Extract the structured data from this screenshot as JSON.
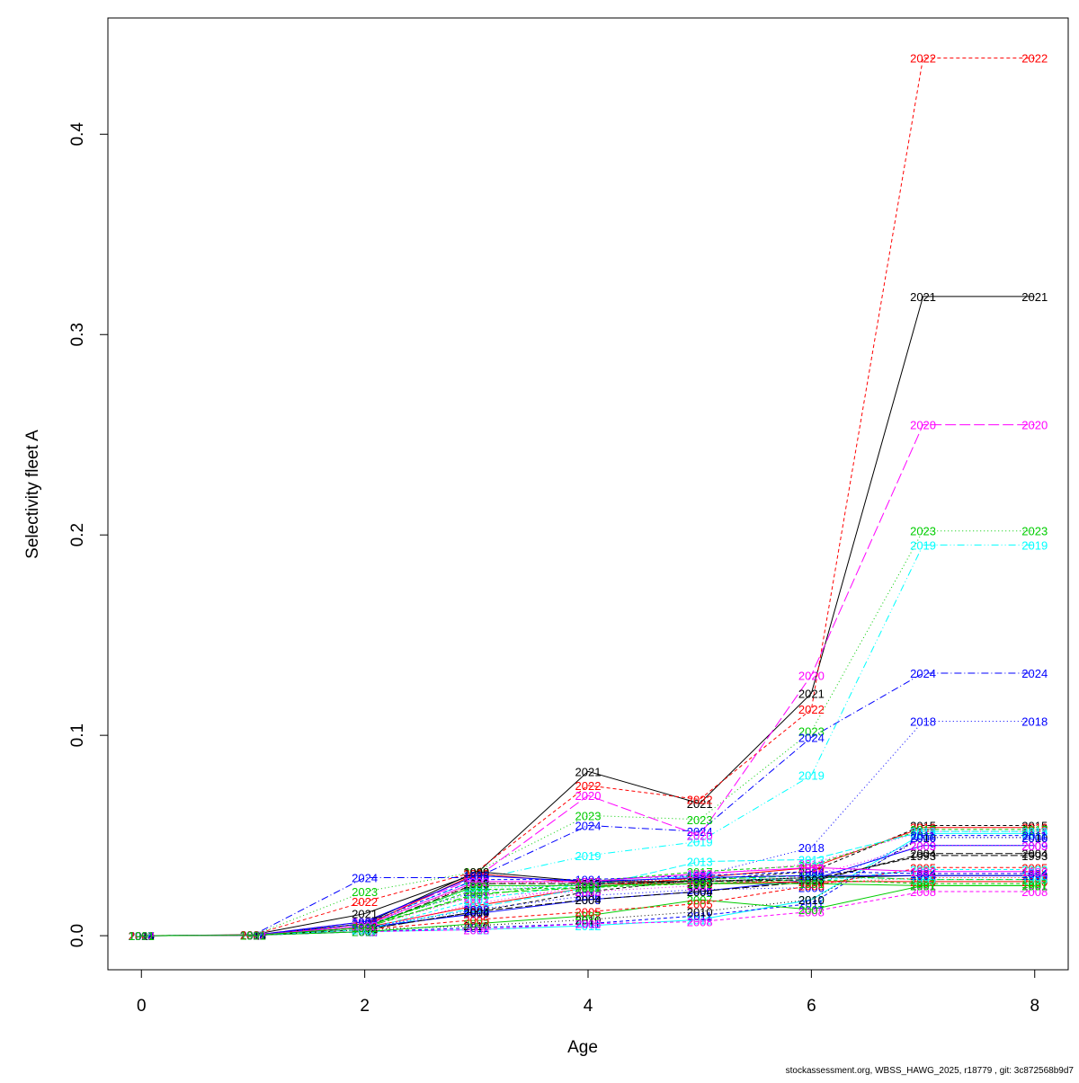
{
  "chart_data": {
    "type": "line",
    "title": "",
    "xlabel": "Age",
    "ylabel": "Selectivity fleet A",
    "xlim": [
      -0.3,
      8.3
    ],
    "ylim": [
      -0.017,
      0.458
    ],
    "xticks": [
      0,
      2,
      4,
      6,
      8
    ],
    "yticks": [
      0.0,
      0.1,
      0.2,
      0.3,
      0.4
    ],
    "ytick_labels": [
      "0.0",
      "0.1",
      "0.2",
      "0.3",
      "0.4"
    ],
    "grid": false,
    "legend": "none",
    "x": [
      0,
      1,
      2,
      3,
      4,
      5,
      6,
      7,
      8
    ],
    "series": [
      {
        "name": "2021",
        "color": "#000000",
        "dash": "",
        "values": [
          0,
          0.0005,
          0.011,
          0.031,
          0.082,
          0.066,
          0.121,
          0.319,
          0.319
        ]
      },
      {
        "name": "2022",
        "color": "#FF0000",
        "dash": "4,3",
        "values": [
          0,
          0.0004,
          0.017,
          0.032,
          0.075,
          0.068,
          0.113,
          0.438,
          0.438
        ]
      },
      {
        "name": "2023",
        "color": "#00CD00",
        "dash": "1,3",
        "values": [
          0,
          0.0003,
          0.022,
          0.032,
          0.06,
          0.058,
          0.102,
          0.202,
          0.202
        ]
      },
      {
        "name": "2024",
        "color": "#0000FF",
        "dash": "8,3,1,3",
        "values": [
          0,
          0.0003,
          0.029,
          0.029,
          0.055,
          0.052,
          0.099,
          0.131,
          0.131
        ]
      },
      {
        "name": "2019",
        "color": "#00FFFF",
        "dash": "8,3,1,3,1,3",
        "values": [
          0,
          0.0003,
          0.006,
          0.028,
          0.04,
          0.047,
          0.08,
          0.195,
          0.195
        ]
      },
      {
        "name": "2020",
        "color": "#FF00FF",
        "dash": "12,4",
        "values": [
          0,
          0.0003,
          0.007,
          0.029,
          0.07,
          0.05,
          0.13,
          0.255,
          0.255
        ]
      },
      {
        "name": "2018",
        "color": "#0000FF",
        "dash": "1,3",
        "values": [
          0,
          0.0003,
          0.006,
          0.022,
          0.026,
          0.03,
          0.044,
          0.107,
          0.107
        ]
      },
      {
        "name": "2015",
        "color": "#000000",
        "dash": "4,3",
        "values": [
          0,
          0.0003,
          0.003,
          0.012,
          0.022,
          0.028,
          0.032,
          0.055,
          0.055
        ]
      },
      {
        "name": "2016",
        "color": "#FF0000",
        "dash": "",
        "values": [
          0,
          0.0003,
          0.004,
          0.015,
          0.024,
          0.029,
          0.034,
          0.054,
          0.054
        ]
      },
      {
        "name": "2017",
        "color": "#00CD00",
        "dash": "4,3",
        "values": [
          0,
          0.0003,
          0.005,
          0.02,
          0.027,
          0.032,
          0.035,
          0.053,
          0.053
        ]
      },
      {
        "name": "2014",
        "color": "#FF00FF",
        "dash": "1,3",
        "values": [
          0,
          0.0003,
          0.003,
          0.016,
          0.025,
          0.03,
          0.036,
          0.052,
          0.052
        ]
      },
      {
        "name": "2013",
        "color": "#00FFFF",
        "dash": "8,3",
        "values": [
          0,
          0.0003,
          0.003,
          0.014,
          0.024,
          0.037,
          0.038,
          0.052,
          0.052
        ]
      },
      {
        "name": "2012",
        "color": "#00FFFF",
        "dash": "",
        "values": [
          0,
          0.0002,
          0.002,
          0.003,
          0.005,
          0.008,
          0.018,
          0.051,
          0.051
        ]
      },
      {
        "name": "2011",
        "color": "#0000FF",
        "dash": "4,3",
        "values": [
          0,
          0.0002,
          0.002,
          0.004,
          0.006,
          0.01,
          0.016,
          0.05,
          0.05
        ]
      },
      {
        "name": "2010",
        "color": "#000000",
        "dash": "1,3",
        "values": [
          0,
          0.0002,
          0.003,
          0.005,
          0.008,
          0.012,
          0.018,
          0.049,
          0.049
        ]
      },
      {
        "name": "2009",
        "color": "#0000FF",
        "dash": "",
        "values": [
          0,
          0.0002,
          0.004,
          0.011,
          0.018,
          0.022,
          0.028,
          0.045,
          0.045
        ]
      },
      {
        "name": "2008",
        "color": "#FF00FF",
        "dash": "4,3",
        "values": [
          0,
          0.0002,
          0.002,
          0.003,
          0.006,
          0.007,
          0.012,
          0.022,
          0.022
        ]
      },
      {
        "name": "2007",
        "color": "#00CD00",
        "dash": "",
        "values": [
          0,
          0.0002,
          0.002,
          0.006,
          0.01,
          0.018,
          0.013,
          0.025,
          0.025
        ]
      },
      {
        "name": "2006",
        "color": "#0000FF",
        "dash": "1,3",
        "values": [
          0,
          0.0002,
          0.004,
          0.013,
          0.02,
          0.023,
          0.024,
          0.049,
          0.049
        ]
      },
      {
        "name": "2005",
        "color": "#FF0000",
        "dash": "4,3",
        "values": [
          0,
          0.0002,
          0.003,
          0.008,
          0.012,
          0.016,
          0.025,
          0.034,
          0.034
        ]
      },
      {
        "name": "2004",
        "color": "#000000",
        "dash": "8,3",
        "values": [
          0,
          0.0002,
          0.003,
          0.012,
          0.018,
          0.022,
          0.027,
          0.041,
          0.041
        ]
      },
      {
        "name": "2003",
        "color": "#FF00FF",
        "dash": "1,3",
        "values": [
          0,
          0.0002,
          0.004,
          0.02,
          0.022,
          0.025,
          0.03,
          0.045,
          0.045
        ]
      },
      {
        "name": "2002",
        "color": "#00FFFF",
        "dash": "4,3",
        "values": [
          0,
          0.0002,
          0.003,
          0.018,
          0.026,
          0.03,
          0.027,
          0.033,
          0.033
        ]
      },
      {
        "name": "2001",
        "color": "#00CD00",
        "dash": "8,3",
        "values": [
          0,
          0.0002,
          0.004,
          0.021,
          0.024,
          0.028,
          0.03,
          0.028,
          0.028
        ]
      },
      {
        "name": "2000",
        "color": "#FF0000",
        "dash": "",
        "values": [
          0,
          0.0002,
          0.005,
          0.031,
          0.026,
          0.026,
          0.027,
          0.027,
          0.027
        ]
      },
      {
        "name": "1999",
        "color": "#000000",
        "dash": "",
        "values": [
          0,
          0.0002,
          0.006,
          0.032,
          0.027,
          0.027,
          0.029,
          0.03,
          0.03
        ]
      },
      {
        "name": "1998",
        "color": "#FF0000",
        "dash": "1,3",
        "values": [
          0,
          0.0002,
          0.006,
          0.026,
          0.027,
          0.028,
          0.026,
          0.029,
          0.029
        ]
      },
      {
        "name": "1997",
        "color": "#00CD00",
        "dash": "4,3",
        "values": [
          0,
          0.0002,
          0.005,
          0.023,
          0.024,
          0.026,
          0.028,
          0.026,
          0.026
        ]
      },
      {
        "name": "1996",
        "color": "#0000FF",
        "dash": "",
        "values": [
          0,
          0.0002,
          0.007,
          0.03,
          0.027,
          0.029,
          0.03,
          0.03,
          0.03
        ]
      },
      {
        "name": "1995",
        "color": "#00FFFF",
        "dash": "1,3",
        "values": [
          0,
          0.0002,
          0.005,
          0.024,
          0.025,
          0.027,
          0.029,
          0.028,
          0.028
        ]
      },
      {
        "name": "1994",
        "color": "#0000FF",
        "dash": "4,3",
        "values": [
          0,
          0.0002,
          0.006,
          0.028,
          0.028,
          0.03,
          0.032,
          0.031,
          0.031
        ]
      },
      {
        "name": "1993",
        "color": "#000000",
        "dash": "8,3",
        "values": [
          0,
          0.0002,
          0.004,
          0.026,
          0.026,
          0.027,
          0.028,
          0.04,
          0.04
        ]
      },
      {
        "name": "1992",
        "color": "#FF00FF",
        "dash": "",
        "values": [
          0,
          0.0002,
          0.005,
          0.027,
          0.027,
          0.031,
          0.034,
          0.032,
          0.032
        ]
      },
      {
        "name": "1991",
        "color": "#00CD00",
        "dash": "",
        "values": [
          0,
          0.0002,
          0.004,
          0.025,
          0.025,
          0.026,
          0.026,
          0.025,
          0.025
        ]
      }
    ]
  },
  "footer": {
    "credit": "stockassessment.org, WBSS_HAWG_2025, r18779 , git: 3c872568b9d7"
  }
}
